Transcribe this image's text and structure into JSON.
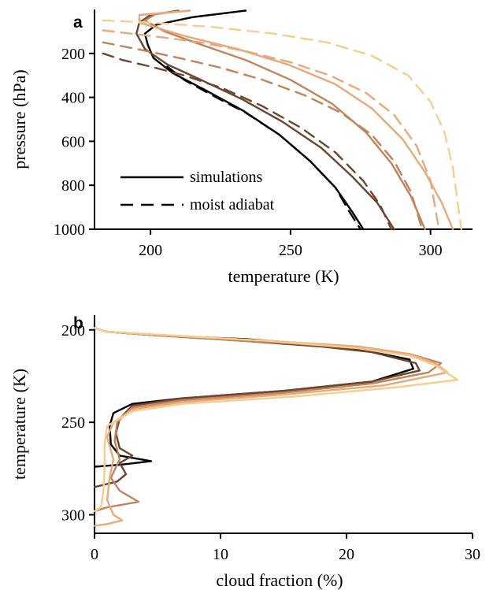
{
  "colors": [
    "#000000",
    "#6b4530",
    "#c1835a",
    "#e8a87a",
    "#f8cc8c"
  ],
  "chart_data": [
    {
      "panel": "a",
      "type": "line",
      "xlabel": "temperature (K)",
      "ylabel": "pressure (hPa)",
      "xlim": [
        180,
        315
      ],
      "ylim": [
        1000,
        0
      ],
      "y_inverted": true,
      "xticks": [
        200,
        250,
        300
      ],
      "yticks": [
        200,
        400,
        600,
        800,
        1000
      ],
      "legend": {
        "placement": "lower-left",
        "entries": [
          {
            "label": "simulations",
            "style": "solid"
          },
          {
            "label": "moist adiabat",
            "style": "dashed"
          }
        ]
      },
      "series": [
        {
          "style": "solid",
          "color_index": 0,
          "points": [
            [
              234,
              5
            ],
            [
              215,
              35
            ],
            [
              202,
              70
            ],
            [
              198,
              110
            ],
            [
              199,
              160
            ],
            [
              201,
              220
            ],
            [
              208,
              290
            ],
            [
              220,
              370
            ],
            [
              233,
              460
            ],
            [
              246,
              570
            ],
            [
              257,
              690
            ],
            [
              266,
              810
            ],
            [
              272,
              920
            ],
            [
              276,
              1000
            ]
          ]
        },
        {
          "style": "solid",
          "color_index": 1,
          "points": [
            [
              210,
              5
            ],
            [
              200,
              25
            ],
            [
              196,
              60
            ],
            [
              195,
              110
            ],
            [
              198,
              180
            ],
            [
              206,
              250
            ],
            [
              218,
              320
            ],
            [
              233,
              410
            ],
            [
              247,
              510
            ],
            [
              261,
              630
            ],
            [
              272,
              760
            ],
            [
              281,
              880
            ],
            [
              287,
              1000
            ]
          ]
        },
        {
          "style": "solid",
          "color_index": 2,
          "points": [
            [
              214,
              5
            ],
            [
              202,
              20
            ],
            [
              198,
              50
            ],
            [
              205,
              100
            ],
            [
              218,
              160
            ],
            [
              234,
              230
            ],
            [
              250,
              320
            ],
            [
              265,
              430
            ],
            [
              277,
              560
            ],
            [
              286,
              700
            ],
            [
              293,
              850
            ],
            [
              298,
              1000
            ]
          ]
        },
        {
          "style": "solid",
          "color_index": 3,
          "points": [
            [
              214,
              5
            ],
            [
              196,
              25
            ],
            [
              196,
              60
            ],
            [
              212,
              120
            ],
            [
              231,
              180
            ],
            [
              249,
              250
            ],
            [
              266,
              340
            ],
            [
              279,
              450
            ],
            [
              290,
              590
            ],
            [
              298,
              740
            ],
            [
              304,
              880
            ],
            [
              308,
              1000
            ]
          ]
        },
        {
          "style": "dashed",
          "color_index": 0,
          "points": [
            [
              206,
              260
            ],
            [
              212,
              320
            ],
            [
              222,
              390
            ],
            [
              234,
              470
            ],
            [
              246,
              570
            ],
            [
              257,
              690
            ],
            [
              266,
              810
            ],
            [
              271,
              920
            ],
            [
              275,
              1000
            ]
          ]
        },
        {
          "style": "dashed",
          "color_index": 1,
          "points": [
            [
              183,
              200
            ],
            [
              190,
              230
            ],
            [
              200,
              260
            ],
            [
              212,
              300
            ],
            [
              226,
              360
            ],
            [
              240,
              440
            ],
            [
              254,
              540
            ],
            [
              266,
              650
            ],
            [
              276,
              780
            ],
            [
              282,
              890
            ],
            [
              286,
              1000
            ]
          ]
        },
        {
          "style": "dashed",
          "color_index": 2,
          "points": [
            [
              183,
              150
            ],
            [
              195,
              180
            ],
            [
              210,
              220
            ],
            [
              225,
              265
            ],
            [
              240,
              320
            ],
            [
              255,
              390
            ],
            [
              268,
              470
            ],
            [
              279,
              570
            ],
            [
              287,
              690
            ],
            [
              293,
              830
            ],
            [
              297,
              1000
            ]
          ]
        },
        {
          "style": "dashed",
          "color_index": 3,
          "points": [
            [
              183,
              95
            ],
            [
              200,
              120
            ],
            [
              218,
              150
            ],
            [
              234,
              190
            ],
            [
              250,
              240
            ],
            [
              264,
              300
            ],
            [
              277,
              380
            ],
            [
              287,
              480
            ],
            [
              295,
              620
            ],
            [
              300,
              780
            ],
            [
              303,
              1000
            ]
          ]
        },
        {
          "style": "dashed",
          "color_index": 4,
          "points": [
            [
              183,
              50
            ],
            [
              200,
              60
            ],
            [
              222,
              80
            ],
            [
              244,
              110
            ],
            [
              263,
              150
            ],
            [
              279,
              210
            ],
            [
              292,
              300
            ],
            [
              300,
              420
            ],
            [
              305,
              560
            ],
            [
              308,
              720
            ],
            [
              311,
              1000
            ]
          ]
        }
      ]
    },
    {
      "panel": "b",
      "type": "line",
      "xlabel": "cloud fraction (%)",
      "ylabel": "temperature (K)",
      "xlim": [
        0,
        30
      ],
      "ylim": [
        310,
        192
      ],
      "y_inverted": true,
      "xticks": [
        0,
        10,
        20,
        30
      ],
      "yticks": [
        200,
        250,
        300
      ],
      "series": [
        {
          "color_index": 0,
          "points": [
            [
              0,
              199
            ],
            [
              1,
              201
            ],
            [
              5,
              203
            ],
            [
              12,
              205
            ],
            [
              18,
              208
            ],
            [
              22,
              212
            ],
            [
              25,
              216
            ],
            [
              25.3,
              221
            ],
            [
              22,
              228
            ],
            [
              15,
              233
            ],
            [
              7,
              237
            ],
            [
              3,
              240
            ],
            [
              1.5,
              245
            ],
            [
              1.2,
              252
            ],
            [
              1.3,
              262
            ],
            [
              2,
              268
            ],
            [
              4.5,
              271
            ],
            [
              2,
              273
            ],
            [
              0,
              274
            ]
          ]
        },
        {
          "color_index": 1,
          "points": [
            [
              0,
              199
            ],
            [
              1,
              201
            ],
            [
              5,
              203
            ],
            [
              12,
              206
            ],
            [
              18,
              209
            ],
            [
              22,
              212
            ],
            [
              25.5,
              218
            ],
            [
              25.8,
              222
            ],
            [
              22,
              228
            ],
            [
              15,
              233
            ],
            [
              7,
              237
            ],
            [
              3,
              241
            ],
            [
              2,
              248
            ],
            [
              1.7,
              256
            ],
            [
              2,
              264
            ],
            [
              3,
              268
            ],
            [
              2,
              272
            ],
            [
              2.5,
              278
            ],
            [
              1.8,
              282
            ],
            [
              0,
              285
            ]
          ]
        },
        {
          "color_index": 2,
          "points": [
            [
              0,
              199
            ],
            [
              1,
              201
            ],
            [
              5,
              203
            ],
            [
              12,
              206
            ],
            [
              20,
              209
            ],
            [
              25,
              213
            ],
            [
              27.5,
              218
            ],
            [
              26.5,
              223
            ],
            [
              22,
              229
            ],
            [
              15,
              234
            ],
            [
              7,
              238
            ],
            [
              3,
              242
            ],
            [
              1.8,
              250
            ],
            [
              1.6,
              260
            ],
            [
              2,
              270
            ],
            [
              1.3,
              280
            ],
            [
              2,
              287
            ],
            [
              3.5,
              293
            ],
            [
              1,
              296
            ],
            [
              0,
              298
            ]
          ]
        },
        {
          "color_index": 3,
          "points": [
            [
              0,
              199
            ],
            [
              1,
              201
            ],
            [
              6,
              203
            ],
            [
              14,
              206
            ],
            [
              21,
              209
            ],
            [
              25,
              213
            ],
            [
              27,
              218
            ],
            [
              28,
              223
            ],
            [
              23,
              230
            ],
            [
              15,
              235
            ],
            [
              7,
              239
            ],
            [
              3,
              243
            ],
            [
              1.5,
              250
            ],
            [
              1,
              258
            ],
            [
              1.5,
              270
            ],
            [
              1.2,
              280
            ],
            [
              1,
              292
            ],
            [
              1.5,
              300
            ],
            [
              2.2,
              303
            ],
            [
              1,
              305
            ],
            [
              0,
              306
            ]
          ]
        },
        {
          "color_index": 4,
          "points": [
            [
              0,
              199
            ],
            [
              1,
              201
            ],
            [
              6,
              203
            ],
            [
              14,
              206
            ],
            [
              21,
              210
            ],
            [
              25,
              214
            ],
            [
              27,
              219
            ],
            [
              28.8,
              227
            ],
            [
              24,
              231
            ],
            [
              16,
              236
            ],
            [
              7,
              240
            ],
            [
              3,
              244
            ],
            [
              1,
              252
            ],
            [
              0.8,
              262
            ],
            [
              0.8,
              275
            ],
            [
              0.7,
              288
            ],
            [
              0.5,
              296
            ],
            [
              0,
              298
            ]
          ]
        }
      ]
    }
  ]
}
